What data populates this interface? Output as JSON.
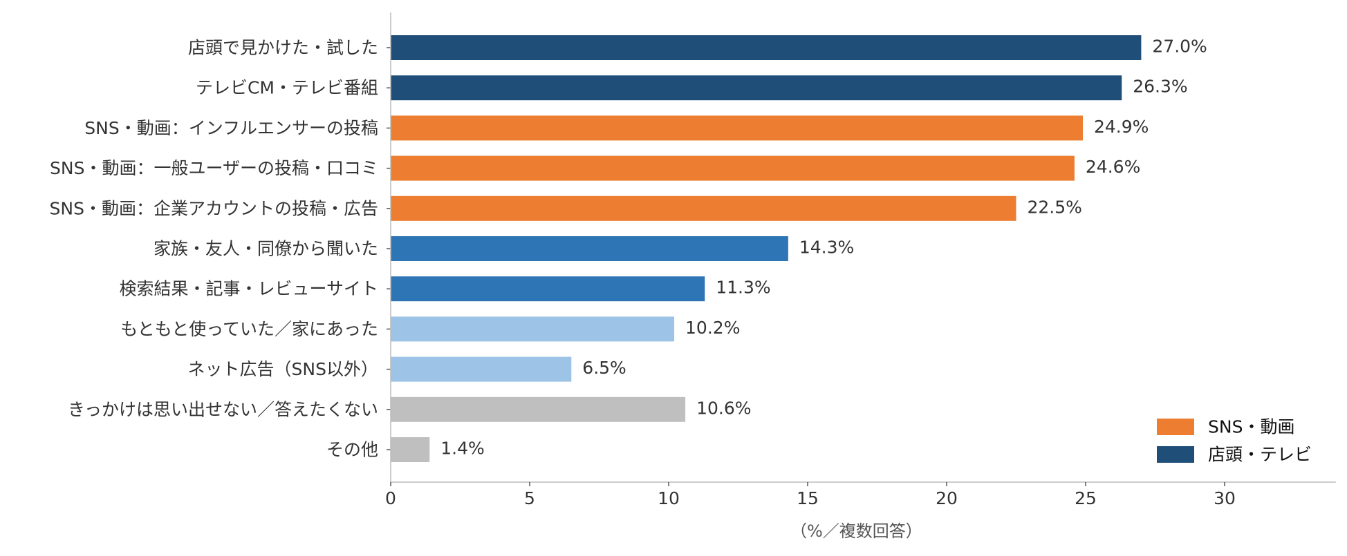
{
  "chart_data": {
    "type": "bar",
    "orientation": "horizontal",
    "categories": [
      "店頭で見かけた・試した",
      "テレビCM・テレビ番組",
      "SNS・動画：インフルエンサーの投稿",
      "SNS・動画：一般ユーザーの投稿・口コミ",
      "SNS・動画：企業アカウントの投稿・広告",
      "家族・友人・同僚から聞いた",
      "検索結果・記事・レビューサイト",
      "もともと使っていた／家にあった",
      "ネット広告（SNS以外）",
      "きっかけは思い出せない／答えたくない",
      "その他"
    ],
    "values": [
      27.0,
      26.3,
      24.9,
      24.6,
      22.5,
      14.3,
      11.3,
      10.2,
      6.5,
      10.6,
      1.4
    ],
    "value_labels": [
      "27.0%",
      "26.3%",
      "24.9%",
      "24.6%",
      "22.5%",
      "14.3%",
      "11.3%",
      "10.2%",
      "6.5%",
      "10.6%",
      "1.4%"
    ],
    "bar_colors": [
      "#1f4e79",
      "#1f4e79",
      "#ed7d31",
      "#ed7d31",
      "#ed7d31",
      "#2e75b6",
      "#2e75b6",
      "#9dc3e6",
      "#9dc3e6",
      "#bfbfbf",
      "#bfbfbf"
    ],
    "xlabel": "（%／複数回答）",
    "xlim": [
      0,
      34
    ],
    "xticks": [
      0,
      5,
      10,
      15,
      20,
      25,
      30
    ],
    "grid": false,
    "legend": {
      "placement": "bottom-right",
      "entries": [
        {
          "label": "SNS・動画",
          "color": "#ed7d31"
        },
        {
          "label": "店頭・テレビ",
          "color": "#1f4e79"
        }
      ]
    }
  }
}
